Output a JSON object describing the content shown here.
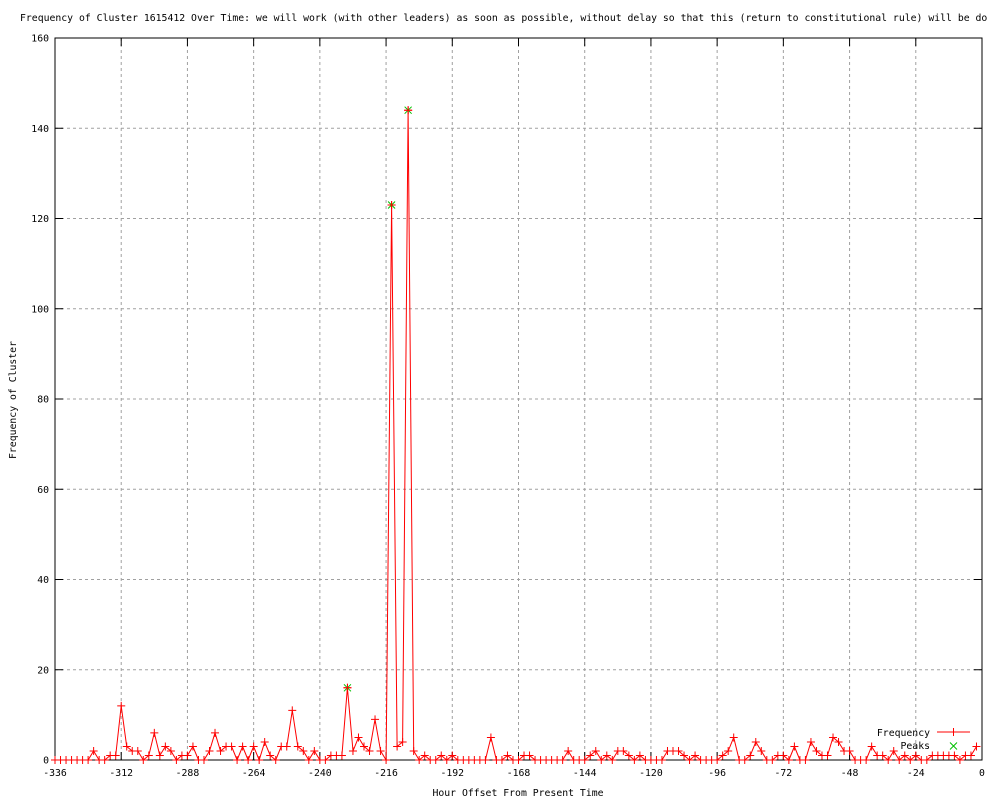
{
  "chart_data": {
    "type": "line",
    "title": "Frequency of Cluster 1615412 Over Time: we will work (with other leaders) as soon as possible, without delay so that this (return to constitutional rule) will be do",
    "xlabel": "Hour Offset From Present Time",
    "ylabel": "Frequency of Cluster",
    "xlim": [
      -336,
      0
    ],
    "ylim": [
      0,
      160
    ],
    "xticks": [
      -336,
      -312,
      -288,
      -264,
      -240,
      -216,
      -192,
      -168,
      -144,
      -120,
      -96,
      -72,
      -48,
      -24,
      0
    ],
    "yticks": [
      0,
      20,
      40,
      60,
      80,
      100,
      120,
      140,
      160
    ],
    "grid": true,
    "legend": "bottom-right",
    "series": [
      {
        "name": "Frequency",
        "color": "#ff0000",
        "marker": "plus",
        "x": [
          -336,
          -334,
          -332,
          -330,
          -328,
          -326,
          -324,
          -322,
          -320,
          -318,
          -316,
          -314,
          -312,
          -310,
          -308,
          -306,
          -304,
          -302,
          -300,
          -298,
          -296,
          -294,
          -292,
          -290,
          -288,
          -286,
          -284,
          -282,
          -280,
          -278,
          -276,
          -274,
          -272,
          -270,
          -268,
          -266,
          -264,
          -262,
          -260,
          -258,
          -256,
          -254,
          -252,
          -250,
          -248,
          -246,
          -244,
          -242,
          -240,
          -238,
          -236,
          -234,
          -232,
          -230,
          -228,
          -226,
          -224,
          -222,
          -220,
          -218,
          -216,
          -214,
          -212,
          -210,
          -208,
          -206,
          -204,
          -202,
          -200,
          -198,
          -196,
          -194,
          -192,
          -190,
          -188,
          -186,
          -184,
          -182,
          -180,
          -178,
          -176,
          -174,
          -172,
          -170,
          -168,
          -166,
          -164,
          -162,
          -160,
          -158,
          -156,
          -154,
          -152,
          -150,
          -148,
          -146,
          -144,
          -142,
          -140,
          -138,
          -136,
          -134,
          -132,
          -130,
          -128,
          -126,
          -124,
          -122,
          -120,
          -118,
          -116,
          -114,
          -112,
          -110,
          -108,
          -106,
          -104,
          -102,
          -100,
          -98,
          -96,
          -94,
          -92,
          -90,
          -88,
          -86,
          -84,
          -82,
          -80,
          -78,
          -76,
          -74,
          -72,
          -70,
          -68,
          -66,
          -64,
          -62,
          -60,
          -58,
          -56,
          -54,
          -52,
          -50,
          -48,
          -46,
          -44,
          -42,
          -40,
          -38,
          -36,
          -34,
          -32,
          -30,
          -28,
          -26,
          -24,
          -22,
          -20,
          -18,
          -16,
          -14,
          -12,
          -10,
          -8,
          -6,
          -4,
          -2
        ],
        "y": [
          0,
          0,
          0,
          0,
          0,
          0,
          0,
          2,
          0,
          0,
          1,
          1,
          12,
          3,
          2,
          2,
          0,
          1,
          6,
          1,
          3,
          2,
          0,
          1,
          1,
          3,
          0,
          0,
          2,
          6,
          2,
          3,
          3,
          0,
          3,
          0,
          3,
          0,
          4,
          1,
          0,
          3,
          3,
          11,
          3,
          2,
          0,
          2,
          0,
          0,
          1,
          1,
          1,
          16,
          2,
          5,
          3,
          2,
          9,
          2,
          0,
          123,
          3,
          4,
          144,
          2,
          0,
          1,
          0,
          0,
          1,
          0,
          1,
          0,
          0,
          0,
          0,
          0,
          0,
          5,
          0,
          0,
          1,
          0,
          0,
          1,
          1,
          0,
          0,
          0,
          0,
          0,
          0,
          2,
          0,
          0,
          0,
          1,
          2,
          0,
          1,
          0,
          2,
          2,
          1,
          0,
          1,
          0,
          0,
          0,
          0,
          2,
          2,
          2,
          1,
          0,
          1,
          0,
          0,
          0,
          0,
          1,
          2,
          5,
          0,
          0,
          1,
          4,
          2,
          0,
          0,
          1,
          1,
          0,
          3,
          0,
          0,
          4,
          2,
          1,
          1,
          5,
          4,
          2,
          2,
          0,
          0,
          0,
          3,
          1,
          1,
          0,
          2,
          0,
          1,
          0,
          1,
          0,
          0,
          1,
          1,
          1,
          1,
          1,
          0,
          1,
          1,
          3
        ]
      },
      {
        "name": "Peaks",
        "color": "#00c000",
        "marker": "cross",
        "x": [
          -230,
          -214,
          -208
        ],
        "y": [
          16,
          123,
          144
        ]
      }
    ]
  }
}
